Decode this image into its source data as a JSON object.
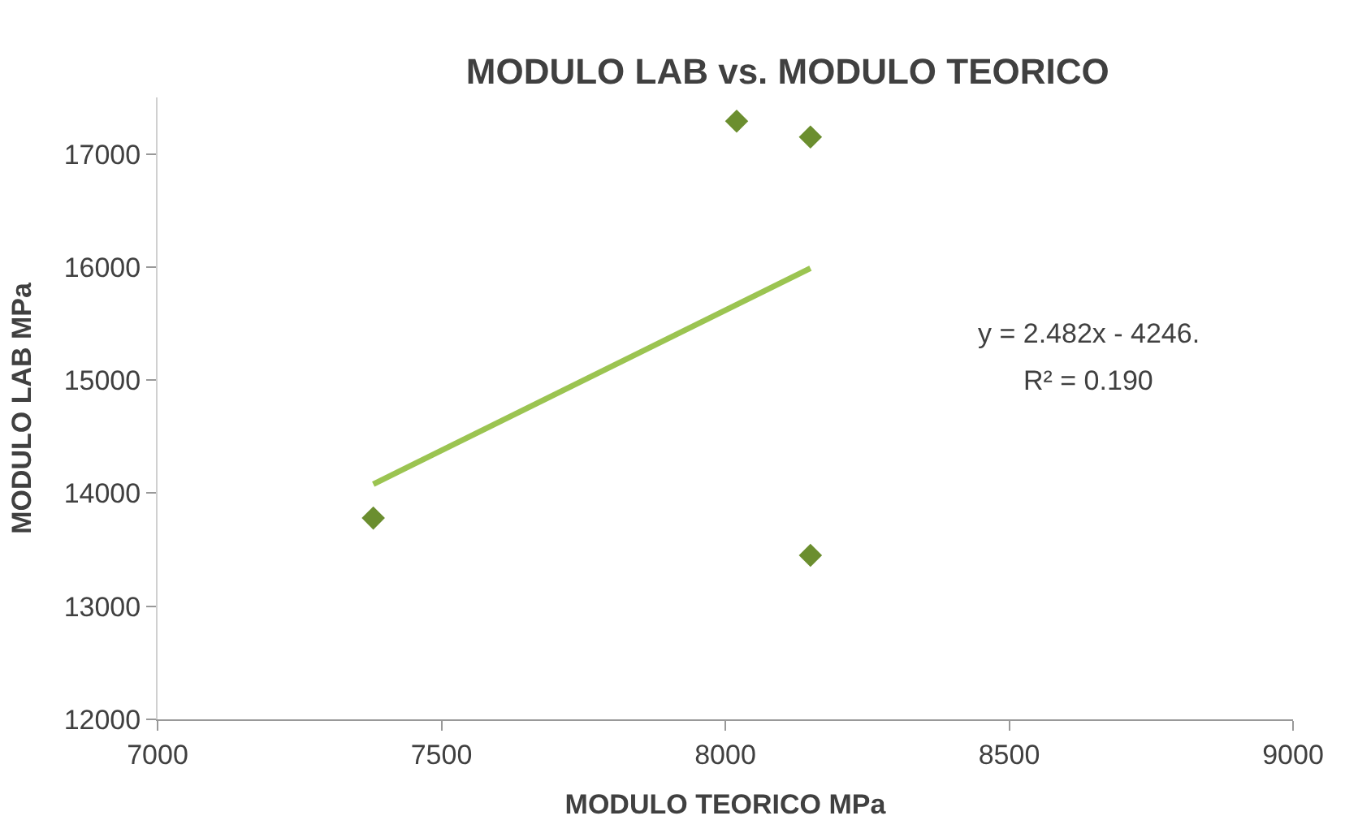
{
  "chart_data": {
    "type": "scatter",
    "title": "MODULO LAB vs. MODULO TEORICO",
    "xlabel": "MODULO TEORICO MPa",
    "ylabel": "MODULO LAB MPa",
    "xlim": [
      7000,
      9000
    ],
    "xticks": [
      7000,
      7500,
      8000,
      8500,
      9000
    ],
    "ylim": [
      12000,
      17500
    ],
    "yticks": [
      12000,
      13000,
      14000,
      15000,
      16000,
      17000
    ],
    "marker": "diamond",
    "series": [
      {
        "color": "#6b8e2f",
        "x": [
          7380,
          8020,
          8150,
          8150
        ],
        "values": [
          13780,
          17290,
          17150,
          13450
        ]
      },
      {
        "type": "line",
        "color": "#9bc451",
        "x": [
          7380,
          8150
        ],
        "values": [
          14080,
          15990
        ],
        "marker": "none"
      }
    ],
    "annotations": [
      "y = 2.482x - 4246.",
      "R² = 0.190"
    ]
  }
}
